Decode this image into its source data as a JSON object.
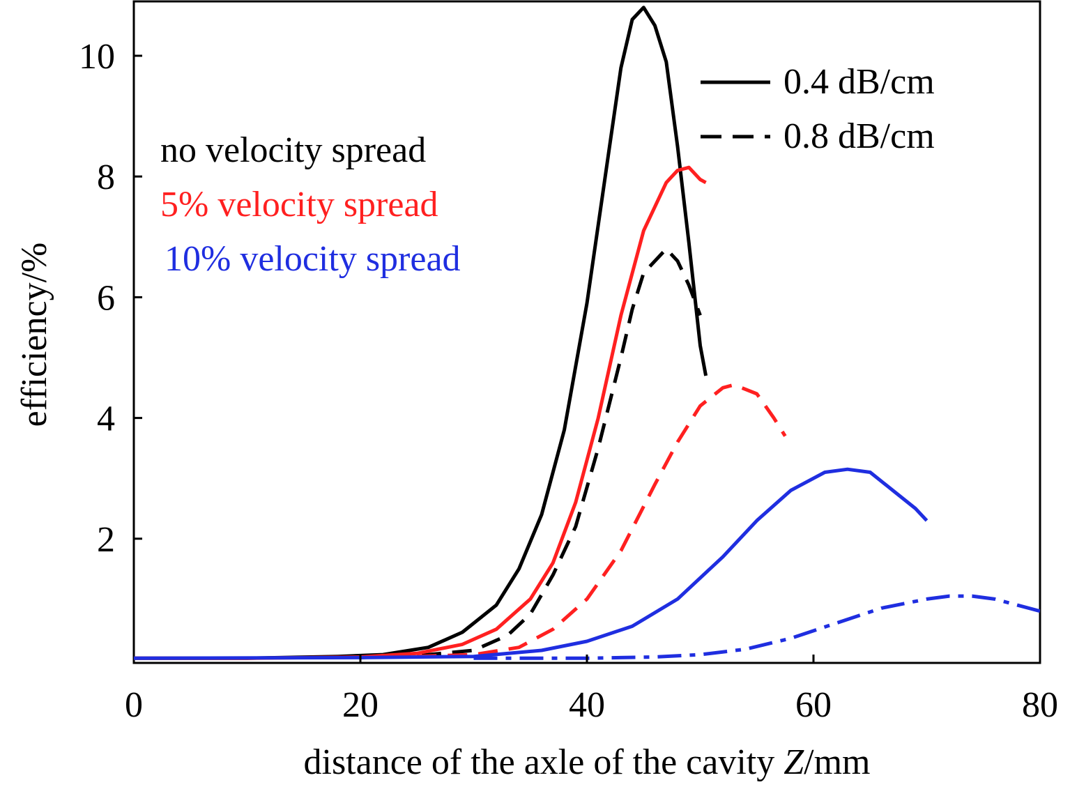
{
  "chart_data": {
    "type": "line",
    "xlabel_parts": [
      "distance of the axle of the cavity ",
      "Z",
      "/mm"
    ],
    "ylabel": "efficiency/%",
    "xlim": [
      0,
      80
    ],
    "ylim": [
      0,
      11
    ],
    "xticks": [
      "0",
      "20",
      "40",
      "60",
      "80"
    ],
    "yticks": [
      "2",
      "4",
      "6",
      "8",
      "10"
    ],
    "grid": false,
    "legend": {
      "placement": "top-right",
      "entries": [
        {
          "label": "0.4 dB/cm",
          "style": "solid"
        },
        {
          "label": "0.8 dB/cm",
          "style": "dashed"
        }
      ]
    },
    "annotations": [
      {
        "text": "no velocity spread",
        "color": "#000000"
      },
      {
        "text": "5% velocity spread",
        "color": "#ff2020"
      },
      {
        "text": "10% velocity spread",
        "color": "#1f2ee0"
      }
    ],
    "series": [
      {
        "color": "#000000",
        "style": "solid",
        "points": [
          [
            0,
            0.02
          ],
          [
            10,
            0.02
          ],
          [
            18,
            0.05
          ],
          [
            22,
            0.08
          ],
          [
            26,
            0.2
          ],
          [
            29,
            0.45
          ],
          [
            32,
            0.9
          ],
          [
            34,
            1.5
          ],
          [
            36,
            2.4
          ],
          [
            38,
            3.8
          ],
          [
            40,
            5.9
          ],
          [
            42,
            8.5
          ],
          [
            43,
            9.8
          ],
          [
            44,
            10.6
          ],
          [
            45,
            10.8
          ],
          [
            46,
            10.5
          ],
          [
            47,
            9.9
          ],
          [
            48,
            8.5
          ],
          [
            49,
            6.9
          ],
          [
            50,
            5.2
          ],
          [
            50.5,
            4.7
          ]
        ]
      },
      {
        "color": "#000000",
        "style": "dashed",
        "points": [
          [
            20,
            0.03
          ],
          [
            26,
            0.08
          ],
          [
            30,
            0.15
          ],
          [
            33,
            0.4
          ],
          [
            35,
            0.75
          ],
          [
            37,
            1.4
          ],
          [
            39,
            2.2
          ],
          [
            41,
            3.5
          ],
          [
            43,
            5.0
          ],
          [
            44,
            5.8
          ],
          [
            45,
            6.4
          ],
          [
            46,
            6.6
          ],
          [
            47,
            6.8
          ],
          [
            48,
            6.6
          ],
          [
            49,
            6.2
          ],
          [
            50,
            5.7
          ]
        ]
      },
      {
        "color": "#ff2020",
        "style": "solid",
        "points": [
          [
            0,
            0.02
          ],
          [
            10,
            0.02
          ],
          [
            20,
            0.04
          ],
          [
            25,
            0.1
          ],
          [
            29,
            0.25
          ],
          [
            32,
            0.5
          ],
          [
            35,
            1.0
          ],
          [
            37,
            1.6
          ],
          [
            39,
            2.6
          ],
          [
            41,
            4.0
          ],
          [
            43,
            5.7
          ],
          [
            45,
            7.1
          ],
          [
            47,
            7.9
          ],
          [
            48,
            8.1
          ],
          [
            49,
            8.15
          ],
          [
            50,
            7.95
          ],
          [
            50.5,
            7.9
          ]
        ]
      },
      {
        "color": "#ff2020",
        "style": "dashed",
        "points": [
          [
            25,
            0.05
          ],
          [
            30,
            0.08
          ],
          [
            34,
            0.2
          ],
          [
            37,
            0.5
          ],
          [
            40,
            1.0
          ],
          [
            43,
            1.8
          ],
          [
            46,
            2.9
          ],
          [
            48,
            3.6
          ],
          [
            50,
            4.2
          ],
          [
            52,
            4.5
          ],
          [
            53,
            4.55
          ],
          [
            55,
            4.4
          ],
          [
            56.5,
            4.0
          ],
          [
            57.5,
            3.7
          ]
        ]
      },
      {
        "color": "#1f2ee0",
        "style": "solid",
        "points": [
          [
            0,
            0.02
          ],
          [
            20,
            0.03
          ],
          [
            30,
            0.05
          ],
          [
            36,
            0.15
          ],
          [
            40,
            0.3
          ],
          [
            44,
            0.55
          ],
          [
            48,
            1.0
          ],
          [
            52,
            1.7
          ],
          [
            55,
            2.3
          ],
          [
            58,
            2.8
          ],
          [
            61,
            3.1
          ],
          [
            63,
            3.15
          ],
          [
            65,
            3.1
          ],
          [
            67,
            2.8
          ],
          [
            69,
            2.5
          ],
          [
            70,
            2.3
          ]
        ]
      },
      {
        "color": "#1f2ee0",
        "style": "dashdot",
        "points": [
          [
            30,
            0.02
          ],
          [
            40,
            0.02
          ],
          [
            46,
            0.04
          ],
          [
            50,
            0.08
          ],
          [
            54,
            0.17
          ],
          [
            58,
            0.35
          ],
          [
            62,
            0.6
          ],
          [
            66,
            0.85
          ],
          [
            70,
            1.0
          ],
          [
            72,
            1.05
          ],
          [
            74,
            1.05
          ],
          [
            76,
            1.0
          ],
          [
            78,
            0.9
          ],
          [
            80,
            0.8
          ]
        ]
      }
    ]
  }
}
